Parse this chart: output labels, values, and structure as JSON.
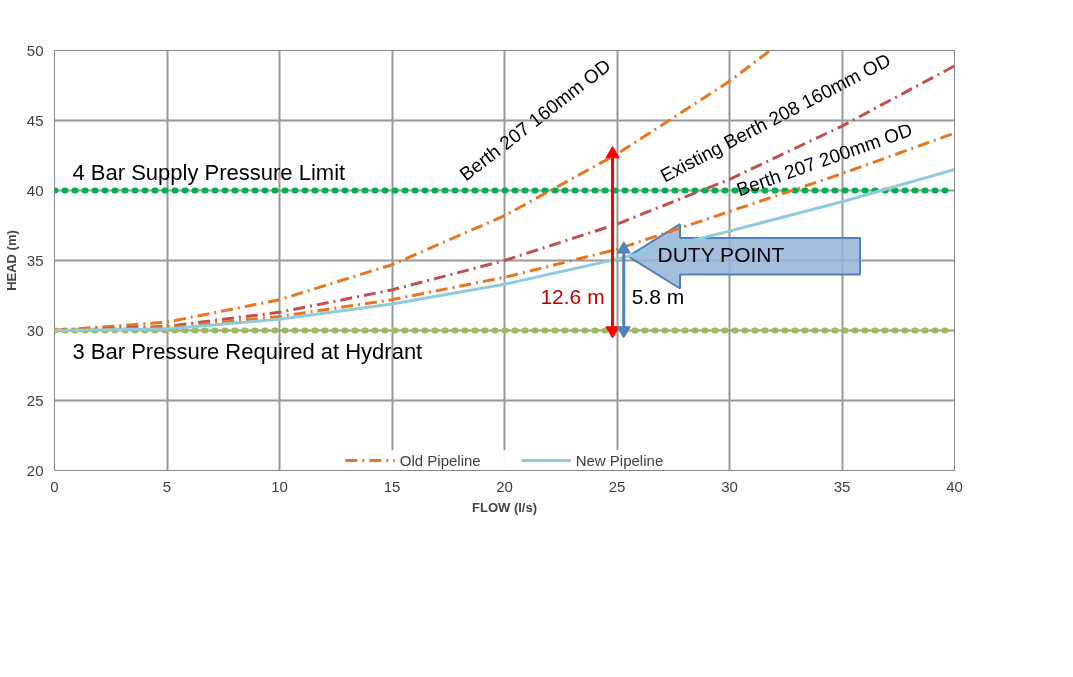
{
  "chart_data": {
    "type": "line",
    "xlabel": "FLOW (l/s)",
    "ylabel": "HEAD (m)",
    "xlim": [
      0,
      40
    ],
    "xticks": [
      0,
      5,
      10,
      15,
      20,
      25,
      30,
      35,
      40
    ],
    "ylim": [
      20,
      50
    ],
    "yticks": [
      20,
      25,
      30,
      35,
      40,
      45,
      50
    ],
    "grid": true,
    "legend": "bottom",
    "line_style": "dashed",
    "series": [
      {
        "name": "Old Pipeline",
        "color": "#e8761e",
        "x": [
          0,
          5,
          10,
          15,
          20,
          25,
          30,
          31.8
        ],
        "values": [
          30,
          30.6,
          32.2,
          34.7,
          38.2,
          42.6,
          47.8,
          50
        ]
      },
      {
        "color": "#c0504d",
        "x": [
          0,
          5,
          10,
          15,
          20,
          25,
          30,
          35,
          40
        ],
        "values": [
          30,
          30.3,
          31.3,
          32.9,
          35.0,
          37.6,
          40.8,
          44.6,
          48.9
        ]
      },
      {
        "color": "#e8761e",
        "x": [
          0,
          5,
          10,
          15,
          20,
          25,
          30,
          35,
          40
        ],
        "values": [
          30,
          30.2,
          31.0,
          32.2,
          33.8,
          35.8,
          38.5,
          41.2,
          44.1
        ]
      },
      {
        "name": "New Pipeline",
        "color": "#8fcbdc",
        "line_style": "solid",
        "x": [
          0,
          5,
          10,
          15,
          20,
          25,
          30,
          35,
          40
        ],
        "values": [
          30,
          30.1,
          30.8,
          31.9,
          33.3,
          35.1,
          37.1,
          39.2,
          41.5
        ]
      },
      {
        "color": "#ff0000",
        "line_style": "solid",
        "marker": "triangle",
        "x": [
          24.8,
          24.8
        ],
        "values": [
          30,
          42.6
        ]
      },
      {
        "color": "#4f81bd",
        "line_style": "solid",
        "marker": "triangle",
        "x": [
          25.3,
          25.3
        ],
        "values": [
          30,
          35.8
        ]
      }
    ],
    "ref_lines": [
      {
        "axis": "y",
        "value": 40,
        "label": "4 Bar Supply Pressure Limit",
        "color": "#00b050",
        "line_style": "dotted"
      },
      {
        "axis": "y",
        "value": 30,
        "label": "3 Bar Pressure Required at Hydrant",
        "color": "#9bbb59",
        "line_style": "dotted"
      }
    ],
    "annotations": [
      "Berth 207 160mm OD",
      "Existing Berth 208 160mm OD",
      "Berth 207 200mm OD",
      "12.6 m",
      "5.8 m",
      {
        "text": "DUTY POINT",
        "x": 25.5,
        "y": 35.3
      }
    ]
  }
}
